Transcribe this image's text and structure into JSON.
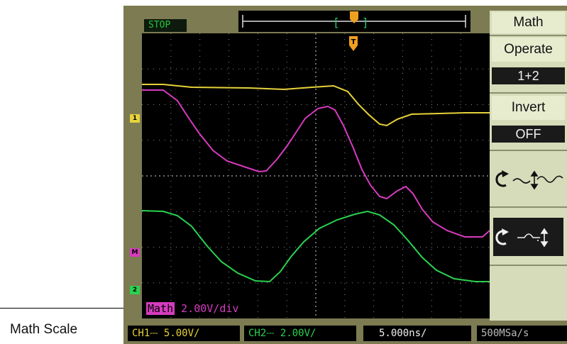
{
  "callout": {
    "label": "Math Scale"
  },
  "status": {
    "run_state": "STOP"
  },
  "trigger_marker": "T",
  "menu": {
    "title": "Math",
    "operate_label": "Operate",
    "operate_value": "1+2",
    "invert_label": "Invert",
    "invert_value": "OFF",
    "knob1_icons": [
      "rotate-knob-icon",
      "vertical-position-icon"
    ],
    "knob2_icons": [
      "rotate-knob-icon",
      "vertical-scale-icon"
    ]
  },
  "channel_markers": {
    "ch1": "1",
    "math": "M",
    "ch2": "2"
  },
  "math_scale": {
    "tag": "Math",
    "value": "2.00V/div"
  },
  "bottom": {
    "ch1": "CH1⎓ 5.00V/",
    "ch2": "CH2⎓ 2.00V/",
    "timebase": "5.000ns/",
    "sample_rate": "500MSa/s"
  },
  "colors": {
    "ch1": "#e6d23a",
    "ch2": "#2ad14f",
    "math": "#d63bbf",
    "bezel": "#7c7b52",
    "menu": "#d6dcba"
  }
}
